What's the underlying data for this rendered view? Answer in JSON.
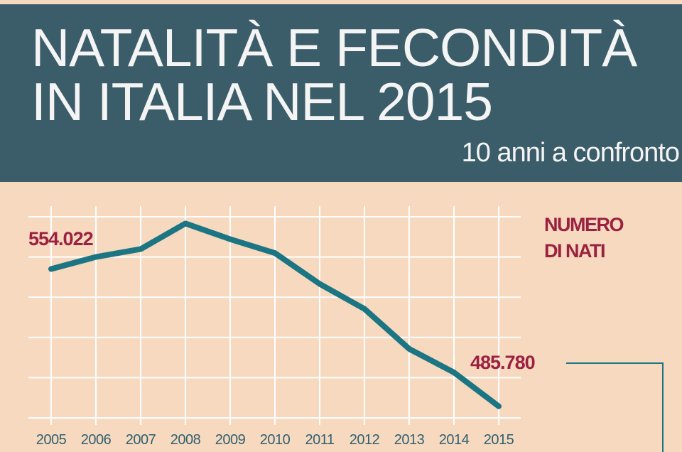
{
  "header": {
    "title_line1": "NATALITÀ E FECONDITÀ",
    "title_line2": "IN ITALIA NEL 2015",
    "subtitle": "10 anni a confronto"
  },
  "colors": {
    "background": "#f6d9bf",
    "header_band": "#3b5c69",
    "line": "#1c7583",
    "label": "#9b2140",
    "tick_label": "#2f6070",
    "grid": "#ffffff"
  },
  "chart_data": {
    "type": "line",
    "title": "NUMERO DI NATI",
    "title_lines": [
      "NUMERO",
      "DI NATI"
    ],
    "x": [
      "2005",
      "2006",
      "2007",
      "2008",
      "2009",
      "2010",
      "2011",
      "2012",
      "2013",
      "2014",
      "2015"
    ],
    "series": [
      {
        "values": [
          554022,
          560010,
          563933,
          576659,
          568857,
          561944,
          546607,
          534186,
          514308,
          502596,
          485780
        ]
      }
    ],
    "annotations": [
      {
        "x": "2005",
        "text": "554.022"
      },
      {
        "x": "2015",
        "text": "485.780"
      }
    ],
    "ylim": [
      480000,
      580000
    ],
    "y_grid_step": 20000,
    "grid": true,
    "y_tick_labels_shown": false
  }
}
